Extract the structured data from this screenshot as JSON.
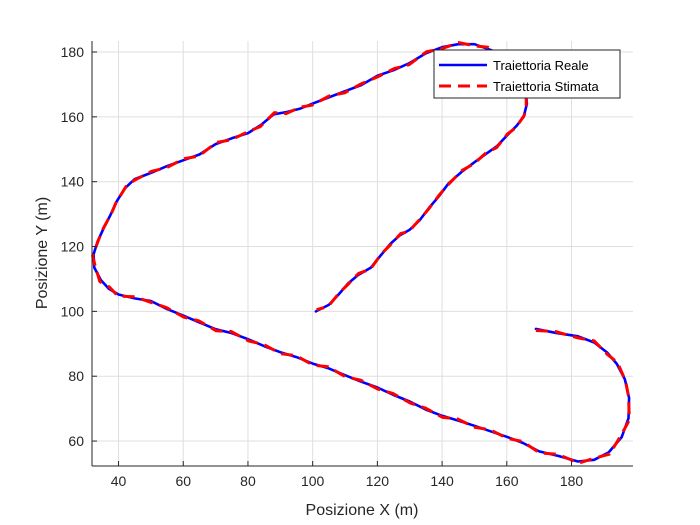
{
  "chart_data": {
    "type": "line",
    "xlabel": "Posizione X (m)",
    "ylabel": "Posizione Y (m)",
    "xlim": [
      31.8,
      199
    ],
    "ylim": [
      52.3,
      183.4
    ],
    "xticks": [
      40,
      60,
      80,
      100,
      120,
      140,
      160,
      180
    ],
    "yticks": [
      60,
      80,
      100,
      120,
      140,
      160,
      180
    ],
    "grid": true,
    "legend_position": "top-right",
    "series": [
      {
        "name": "Traiettoria Reale",
        "color": "#0000ff",
        "style": "solid",
        "points": [
          [
            169,
            94.6
          ],
          [
            175,
            93.4
          ],
          [
            182,
            92.3
          ],
          [
            187,
            90.4
          ],
          [
            191,
            87.3
          ],
          [
            194,
            83.8
          ],
          [
            196.5,
            79
          ],
          [
            197.8,
            73.3
          ],
          [
            197.6,
            67
          ],
          [
            195.5,
            61.2
          ],
          [
            191.5,
            56.5
          ],
          [
            187,
            54.2
          ],
          [
            182,
            53.7
          ],
          [
            176,
            55.4
          ],
          [
            170,
            56.8
          ],
          [
            165,
            59.4
          ],
          [
            160,
            61.3
          ],
          [
            155,
            63
          ],
          [
            150,
            64.7
          ],
          [
            145,
            66.3
          ],
          [
            140,
            67.8
          ],
          [
            135,
            69.7
          ],
          [
            130,
            72.2
          ],
          [
            125,
            74.2
          ],
          [
            120,
            76.5
          ],
          [
            115,
            78.3
          ],
          [
            110,
            80.3
          ],
          [
            105,
            82.4
          ],
          [
            100,
            83.9
          ],
          [
            95,
            85.9
          ],
          [
            90,
            87.4
          ],
          [
            85,
            89.3
          ],
          [
            80,
            91.4
          ],
          [
            75,
            93.3
          ],
          [
            70,
            94.5
          ],
          [
            65,
            96.6
          ],
          [
            60,
            98.7
          ],
          [
            55,
            100.7
          ],
          [
            50,
            103.2
          ],
          [
            45,
            104
          ],
          [
            40,
            105.2
          ],
          [
            37,
            107
          ],
          [
            34.5,
            109.7
          ],
          [
            32.5,
            113.5
          ],
          [
            32.3,
            117.6
          ],
          [
            33.5,
            121.5
          ],
          [
            35.5,
            125.9
          ],
          [
            37.5,
            129.7
          ],
          [
            39.5,
            134
          ],
          [
            42,
            138
          ],
          [
            45,
            140.8
          ],
          [
            50,
            142.7
          ],
          [
            55,
            144.8
          ],
          [
            60,
            146.6
          ],
          [
            65,
            148.4
          ],
          [
            70,
            151.6
          ],
          [
            75,
            153.4
          ],
          [
            80,
            155
          ],
          [
            84,
            157.5
          ],
          [
            88,
            160.8
          ],
          [
            92,
            161.5
          ],
          [
            96,
            162.5
          ],
          [
            100,
            164.1
          ],
          [
            105,
            166
          ],
          [
            110,
            167.9
          ],
          [
            115,
            169.8
          ],
          [
            120,
            172.7
          ],
          [
            125,
            174.4
          ],
          [
            130,
            176.6
          ],
          [
            135,
            179.6
          ],
          [
            140,
            181.5
          ],
          [
            145,
            182.4
          ],
          [
            150,
            182.4
          ],
          [
            154,
            181
          ],
          [
            158,
            179.6
          ],
          [
            162,
            176.3
          ],
          [
            164.5,
            172.3
          ],
          [
            165.8,
            168.5
          ],
          [
            166.2,
            164
          ],
          [
            165.2,
            160
          ],
          [
            163,
            157.2
          ],
          [
            160,
            154.2
          ],
          [
            157,
            151
          ],
          [
            153.5,
            148.5
          ],
          [
            150,
            146
          ],
          [
            146,
            143
          ],
          [
            142,
            139.5
          ],
          [
            139,
            135.5
          ],
          [
            136,
            132
          ],
          [
            133,
            128
          ],
          [
            130,
            125.2
          ],
          [
            127,
            123.5
          ],
          [
            124,
            120.8
          ],
          [
            121,
            117.2
          ],
          [
            118,
            113.5
          ],
          [
            114,
            111.2
          ],
          [
            111,
            108.7
          ],
          [
            108,
            105.2
          ],
          [
            105,
            102
          ],
          [
            101,
            100
          ]
        ]
      },
      {
        "name": "Traiettoria Stimata",
        "color": "#ff0000",
        "style": "dashed",
        "points": [
          [
            169,
            94.1
          ],
          [
            175,
            93.8
          ],
          [
            182,
            91.8
          ],
          [
            187,
            90.9
          ],
          [
            191,
            86.8
          ],
          [
            194.2,
            84.2
          ],
          [
            196.7,
            78.5
          ],
          [
            197.6,
            73.8
          ],
          [
            197.9,
            66.5
          ],
          [
            195.2,
            61.6
          ],
          [
            191.8,
            56
          ],
          [
            186.7,
            54.6
          ],
          [
            182.3,
            53.2
          ],
          [
            175.8,
            55.9
          ],
          [
            170.2,
            56.3
          ],
          [
            164.8,
            59.9
          ],
          [
            160.2,
            60.8
          ],
          [
            154.8,
            63.5
          ],
          [
            150.2,
            64.2
          ],
          [
            144.8,
            66.8
          ],
          [
            140.2,
            67.3
          ],
          [
            134.8,
            70.2
          ],
          [
            130.2,
            71.7
          ],
          [
            124.8,
            74.7
          ],
          [
            120.2,
            76
          ],
          [
            114.8,
            78.8
          ],
          [
            110.2,
            79.8
          ],
          [
            104.8,
            82.9
          ],
          [
            100.2,
            83.4
          ],
          [
            94.8,
            86.4
          ],
          [
            90.2,
            86.9
          ],
          [
            84.8,
            89.8
          ],
          [
            80.2,
            90.9
          ],
          [
            74.8,
            93.8
          ],
          [
            70.2,
            94
          ],
          [
            64.8,
            97.1
          ],
          [
            60.2,
            98.2
          ],
          [
            54.8,
            101.2
          ],
          [
            50.2,
            102.7
          ],
          [
            45,
            104.5
          ],
          [
            39.8,
            104.7
          ],
          [
            37.2,
            107.5
          ],
          [
            34.2,
            109.2
          ],
          [
            32.8,
            114
          ],
          [
            32,
            117.1
          ],
          [
            33.8,
            122
          ],
          [
            35.2,
            125.4
          ],
          [
            37.8,
            130.2
          ],
          [
            39.2,
            133.5
          ],
          [
            42.3,
            138.5
          ],
          [
            44.7,
            140.3
          ],
          [
            50.2,
            143.2
          ],
          [
            54.8,
            144.3
          ],
          [
            60.2,
            147.1
          ],
          [
            64.8,
            147.9
          ],
          [
            70.2,
            152.1
          ],
          [
            74.8,
            152.9
          ],
          [
            80.2,
            155.5
          ],
          [
            83.8,
            157
          ],
          [
            88.2,
            161.3
          ],
          [
            91.8,
            161
          ],
          [
            96.2,
            163
          ],
          [
            99.8,
            163.6
          ],
          [
            105.2,
            166.5
          ],
          [
            109.8,
            167.4
          ],
          [
            115.2,
            170.3
          ],
          [
            119.8,
            172.2
          ],
          [
            125.2,
            174.9
          ],
          [
            129.8,
            176.1
          ],
          [
            135.2,
            180.1
          ],
          [
            139.8,
            181
          ],
          [
            145.2,
            182.9
          ],
          [
            150.2,
            181.9
          ],
          [
            154.2,
            181.5
          ],
          [
            157.8,
            179.1
          ],
          [
            162.2,
            176.8
          ],
          [
            164.3,
            171.8
          ],
          [
            166,
            169
          ],
          [
            166,
            163.5
          ],
          [
            165.4,
            160.5
          ],
          [
            162.8,
            156.7
          ],
          [
            160.2,
            154.7
          ],
          [
            156.8,
            150.5
          ],
          [
            153.7,
            149
          ],
          [
            149.8,
            145.5
          ],
          [
            146.2,
            143.5
          ],
          [
            141.8,
            139
          ],
          [
            139.2,
            136
          ],
          [
            135.8,
            131.5
          ],
          [
            133.2,
            128.5
          ],
          [
            129.8,
            124.7
          ],
          [
            127.2,
            124
          ],
          [
            123.8,
            120.3
          ],
          [
            121.2,
            117.7
          ],
          [
            117.8,
            113
          ],
          [
            114.2,
            111.7
          ],
          [
            110.8,
            108.2
          ],
          [
            108.2,
            105.7
          ],
          [
            104.8,
            101.5
          ],
          [
            101.2,
            100.5
          ]
        ]
      }
    ]
  }
}
